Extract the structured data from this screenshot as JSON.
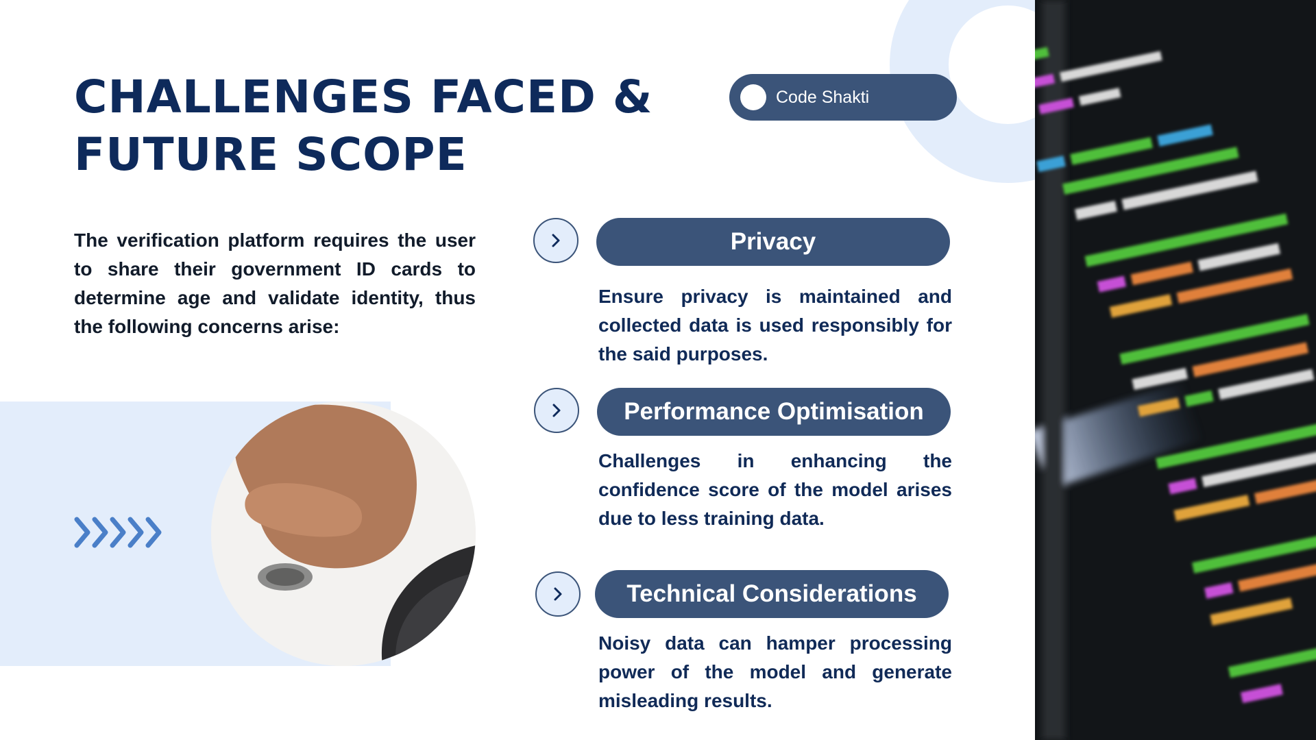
{
  "title": {
    "line1": "CHALLENGES FACED &",
    "line2": "FUTURE SCOPE"
  },
  "brand": {
    "label": "Code Shakti"
  },
  "intro": {
    "text": "The verification platform requires the user to share their government ID cards to determine age and validate identity, thus the following concerns arise:"
  },
  "items": [
    {
      "heading": "Privacy",
      "icon": "chevron-right-icon",
      "description": "Ensure privacy is maintained and collected data is used responsibly for the said purposes."
    },
    {
      "heading": "Performance Optimisation",
      "icon": "chevron-right-icon",
      "description": "Challenges in enhancing the confidence score of the model arises due to less training data."
    },
    {
      "heading": "Technical Considerations",
      "icon": "chevron-right-icon",
      "description": "Noisy data can hamper processing power of the model and generate misleading results."
    }
  ],
  "images": {
    "fingerprint_photo": "fingerprint-photo",
    "code_photo": "code-screen-photo"
  },
  "colors": {
    "title": "#0e2a5b",
    "pill": "#3b5479",
    "light_blue": "#e3edfb",
    "accent_chevrons": "#4a7fc8"
  }
}
